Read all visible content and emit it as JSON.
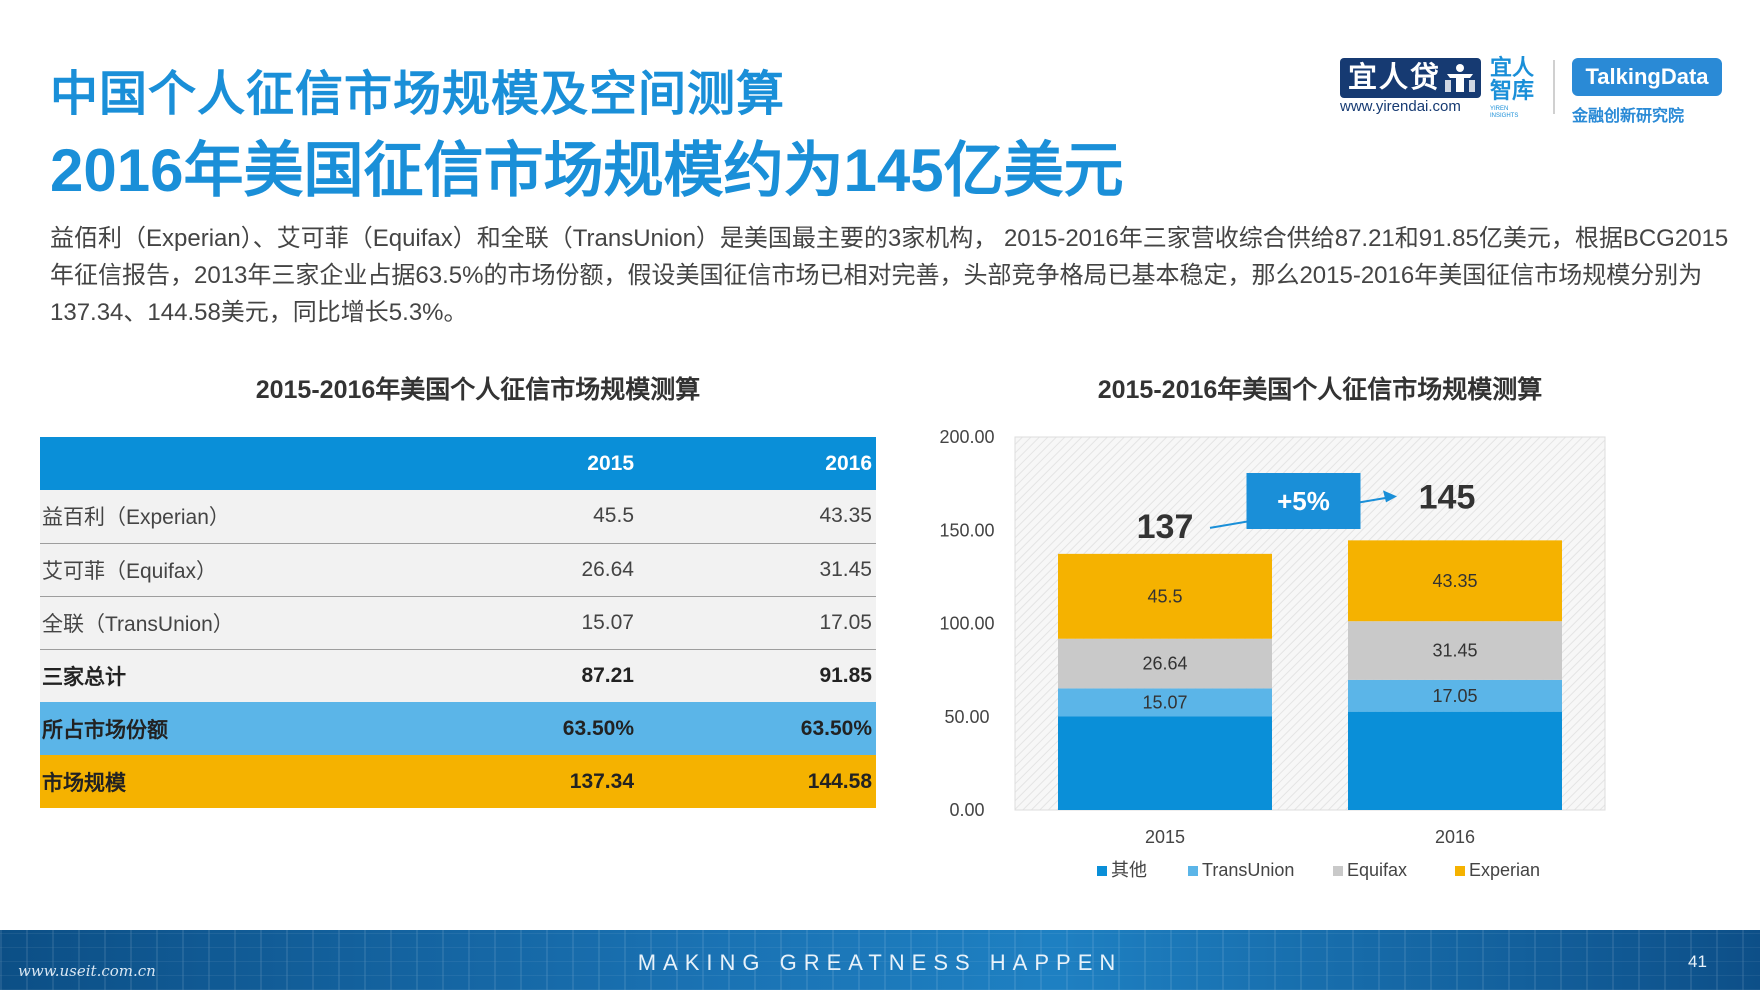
{
  "header": {
    "title": "中国个人征信市场规模及空间测算",
    "headline": "2016年美国征信市场规模约为145亿美元",
    "intro": "益佰利（Experian）、艾可菲（Equifax）和全联（TransUnion）是美国最主要的3家机构， 2015-2016年三家营收综合供给87.21和91.85亿美元，根据BCG2015年征信报告，2013年三家企业占据63.5%的市场份额，假设美国征信市场已相对完善，头部竞争格局已基本稳定，那么2015-2016年美国征信市场规模分别为137.34、144.58美元，同比增长5.3%。"
  },
  "logos": {
    "yirendai_text": "宜人贷",
    "yirendai_url": "www.yirendai.com",
    "zhiku_text": "宜人智库",
    "zhiku_sub": "YIREN INSIGHTS",
    "talkingdata_text": "TalkingData",
    "talkingdata_sub": "金融创新研究院"
  },
  "table": {
    "title": "2015-2016年美国个人征信市场规模测算",
    "headers": [
      "",
      "2015",
      "2016"
    ],
    "rows": [
      {
        "label": "益百利（Experian）",
        "v2015": "45.5",
        "v2016": "43.35"
      },
      {
        "label": "艾可菲（Equifax）",
        "v2015": "26.64",
        "v2016": "31.45"
      },
      {
        "label": "全联（TransUnion）",
        "v2015": "15.07",
        "v2016": "17.05"
      },
      {
        "label": "三家总计",
        "v2015": "87.21",
        "v2016": "91.85"
      },
      {
        "label": "所占市场份额",
        "v2015": "63.50%",
        "v2016": "63.50%"
      },
      {
        "label": "市场规模",
        "v2015": "137.34",
        "v2016": "144.58"
      }
    ]
  },
  "chart_data": {
    "type": "bar",
    "stacked": true,
    "title": "2015-2016年美国个人征信市场规模测算",
    "categories": [
      "2015",
      "2016"
    ],
    "series": [
      {
        "name": "其他",
        "values": [
          50.13,
          52.73
        ],
        "color": "#0a8fd8"
      },
      {
        "name": "TransUnion",
        "values": [
          15.07,
          17.05
        ],
        "color": "#5bb5e8",
        "labels": [
          "15.07",
          "17.05"
        ]
      },
      {
        "name": "Equifax",
        "values": [
          26.64,
          31.45
        ],
        "color": "#c9c9c9",
        "labels": [
          "26.64",
          "31.45"
        ]
      },
      {
        "name": "Experian",
        "values": [
          45.5,
          43.35
        ],
        "color": "#f5b200",
        "labels": [
          "45.5",
          "43.35"
        ]
      }
    ],
    "totals": [
      "137",
      "145"
    ],
    "annotation": "+5%",
    "ylim": [
      0,
      200
    ],
    "yticks": [
      "0.00",
      "50.00",
      "100.00",
      "150.00",
      "200.00"
    ],
    "legend_position": "bottom",
    "grid": false
  },
  "footer": {
    "slogan": "MAKING GREATNESS HAPPEN",
    "page_number": "41",
    "watermark": "www.useit.com.cn"
  }
}
